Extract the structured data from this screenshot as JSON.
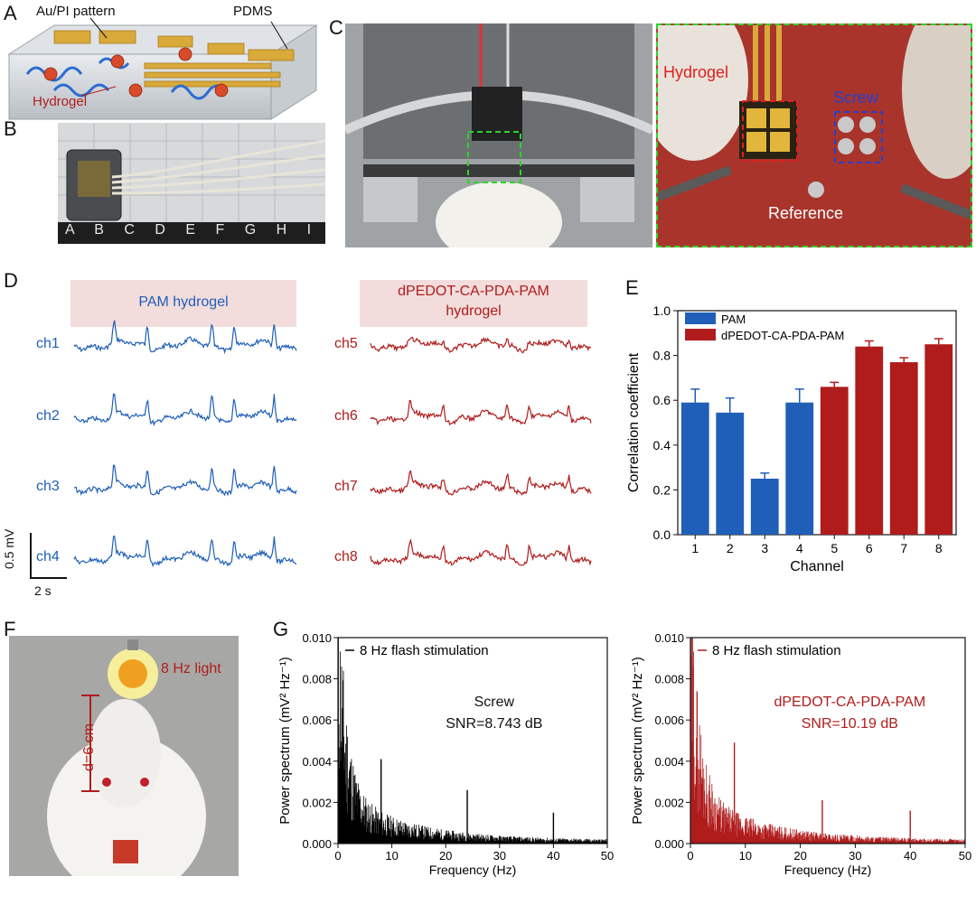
{
  "panels": {
    "A": "A",
    "B": "B",
    "C": "C",
    "D": "D",
    "E": "E",
    "F": "F",
    "G": "G"
  },
  "panel_a": {
    "label_pattern": "Au/PI pattern",
    "label_pdms": "PDMS",
    "label_hydrogel": "Hydrogel"
  },
  "panel_b": {
    "ruler_letters": "A B C D E F G H I"
  },
  "panel_c": {
    "label_hydrogel": "Hydrogel",
    "label_screw": "Screw",
    "label_reference": "Reference"
  },
  "panel_d": {
    "pam_header": "PAM  hydrogel",
    "dpedot_header_line1": "dPEDOT-CA-PDA-PAM",
    "dpedot_header_line2": "hydrogel",
    "left_channels": [
      "ch1",
      "ch2",
      "ch3",
      "ch4"
    ],
    "right_channels": [
      "ch5",
      "ch6",
      "ch7",
      "ch8"
    ],
    "scale_v": "0.5 mV",
    "scale_t": "2 s",
    "colors": {
      "pam": "#1f5fb8",
      "dpedot": "#b01c1c",
      "header_bg": "#f2dcdc"
    }
  },
  "panel_f": {
    "light_label": "8 Hz light",
    "distance_label": "d=6 cm"
  },
  "chart_data": [
    {
      "type": "bar",
      "panel": "E",
      "categories": [
        "1",
        "2",
        "3",
        "4",
        "5",
        "6",
        "7",
        "8"
      ],
      "series": [
        {
          "name": "PAM",
          "color": "#1f5fb8",
          "values": [
            0.59,
            0.545,
            0.25,
            0.59,
            null,
            null,
            null,
            null
          ],
          "errors": [
            0.06,
            0.065,
            0.025,
            0.06,
            null,
            null,
            null,
            null
          ]
        },
        {
          "name": "dPEDOT-CA-PDA-PAM",
          "color": "#b01c1c",
          "values": [
            null,
            null,
            null,
            null,
            0.66,
            0.84,
            0.77,
            0.85
          ],
          "errors": [
            null,
            null,
            null,
            null,
            0.02,
            0.025,
            0.02,
            0.025
          ]
        }
      ],
      "xlabel": "Channel",
      "ylabel": "Correlation coefficient",
      "ylim": [
        0,
        1.0
      ],
      "yticks": [
        "0.0",
        "0.2",
        "0.4",
        "0.6",
        "0.8",
        "1.0"
      ],
      "legend": "top-left"
    },
    {
      "type": "line",
      "panel": "G-left",
      "legend": "8 Hz flash stimulation",
      "annotation_line1": "Screw",
      "annotation_line2": "SNR=8.743 dB",
      "color": "#000000",
      "xlabel": "Frequency (Hz)",
      "ylabel": "Power spectrum (mV² Hz⁻¹)",
      "xlim": [
        0,
        50
      ],
      "ylim": [
        0,
        0.01
      ],
      "xticks": [
        "0",
        "10",
        "20",
        "30",
        "40",
        "50"
      ],
      "yticks": [
        "0.000",
        "0.002",
        "0.004",
        "0.006",
        "0.008",
        "0.010"
      ],
      "peaks": [
        {
          "x": 8,
          "y": 0.0041
        },
        {
          "x": 24,
          "y": 0.0026
        },
        {
          "x": 40,
          "y": 0.0015
        }
      ]
    },
    {
      "type": "line",
      "panel": "G-right",
      "legend": "8 Hz flash stimulation",
      "annotation_line1": "dPEDOT-CA-PDA-PAM",
      "annotation_line2": "SNR=10.19 dB",
      "color": "#b01c1c",
      "xlabel": "Frequency (Hz)",
      "ylabel": "Power spectrum (mV² Hz⁻¹)",
      "xlim": [
        0,
        50
      ],
      "ylim": [
        0,
        0.01
      ],
      "xticks": [
        "0",
        "10",
        "20",
        "30",
        "40",
        "50"
      ],
      "yticks": [
        "0.000",
        "0.002",
        "0.004",
        "0.006",
        "0.008",
        "0.010"
      ],
      "peaks": [
        {
          "x": 8,
          "y": 0.0049
        },
        {
          "x": 24,
          "y": 0.0021
        },
        {
          "x": 40,
          "y": 0.0016
        }
      ]
    }
  ]
}
